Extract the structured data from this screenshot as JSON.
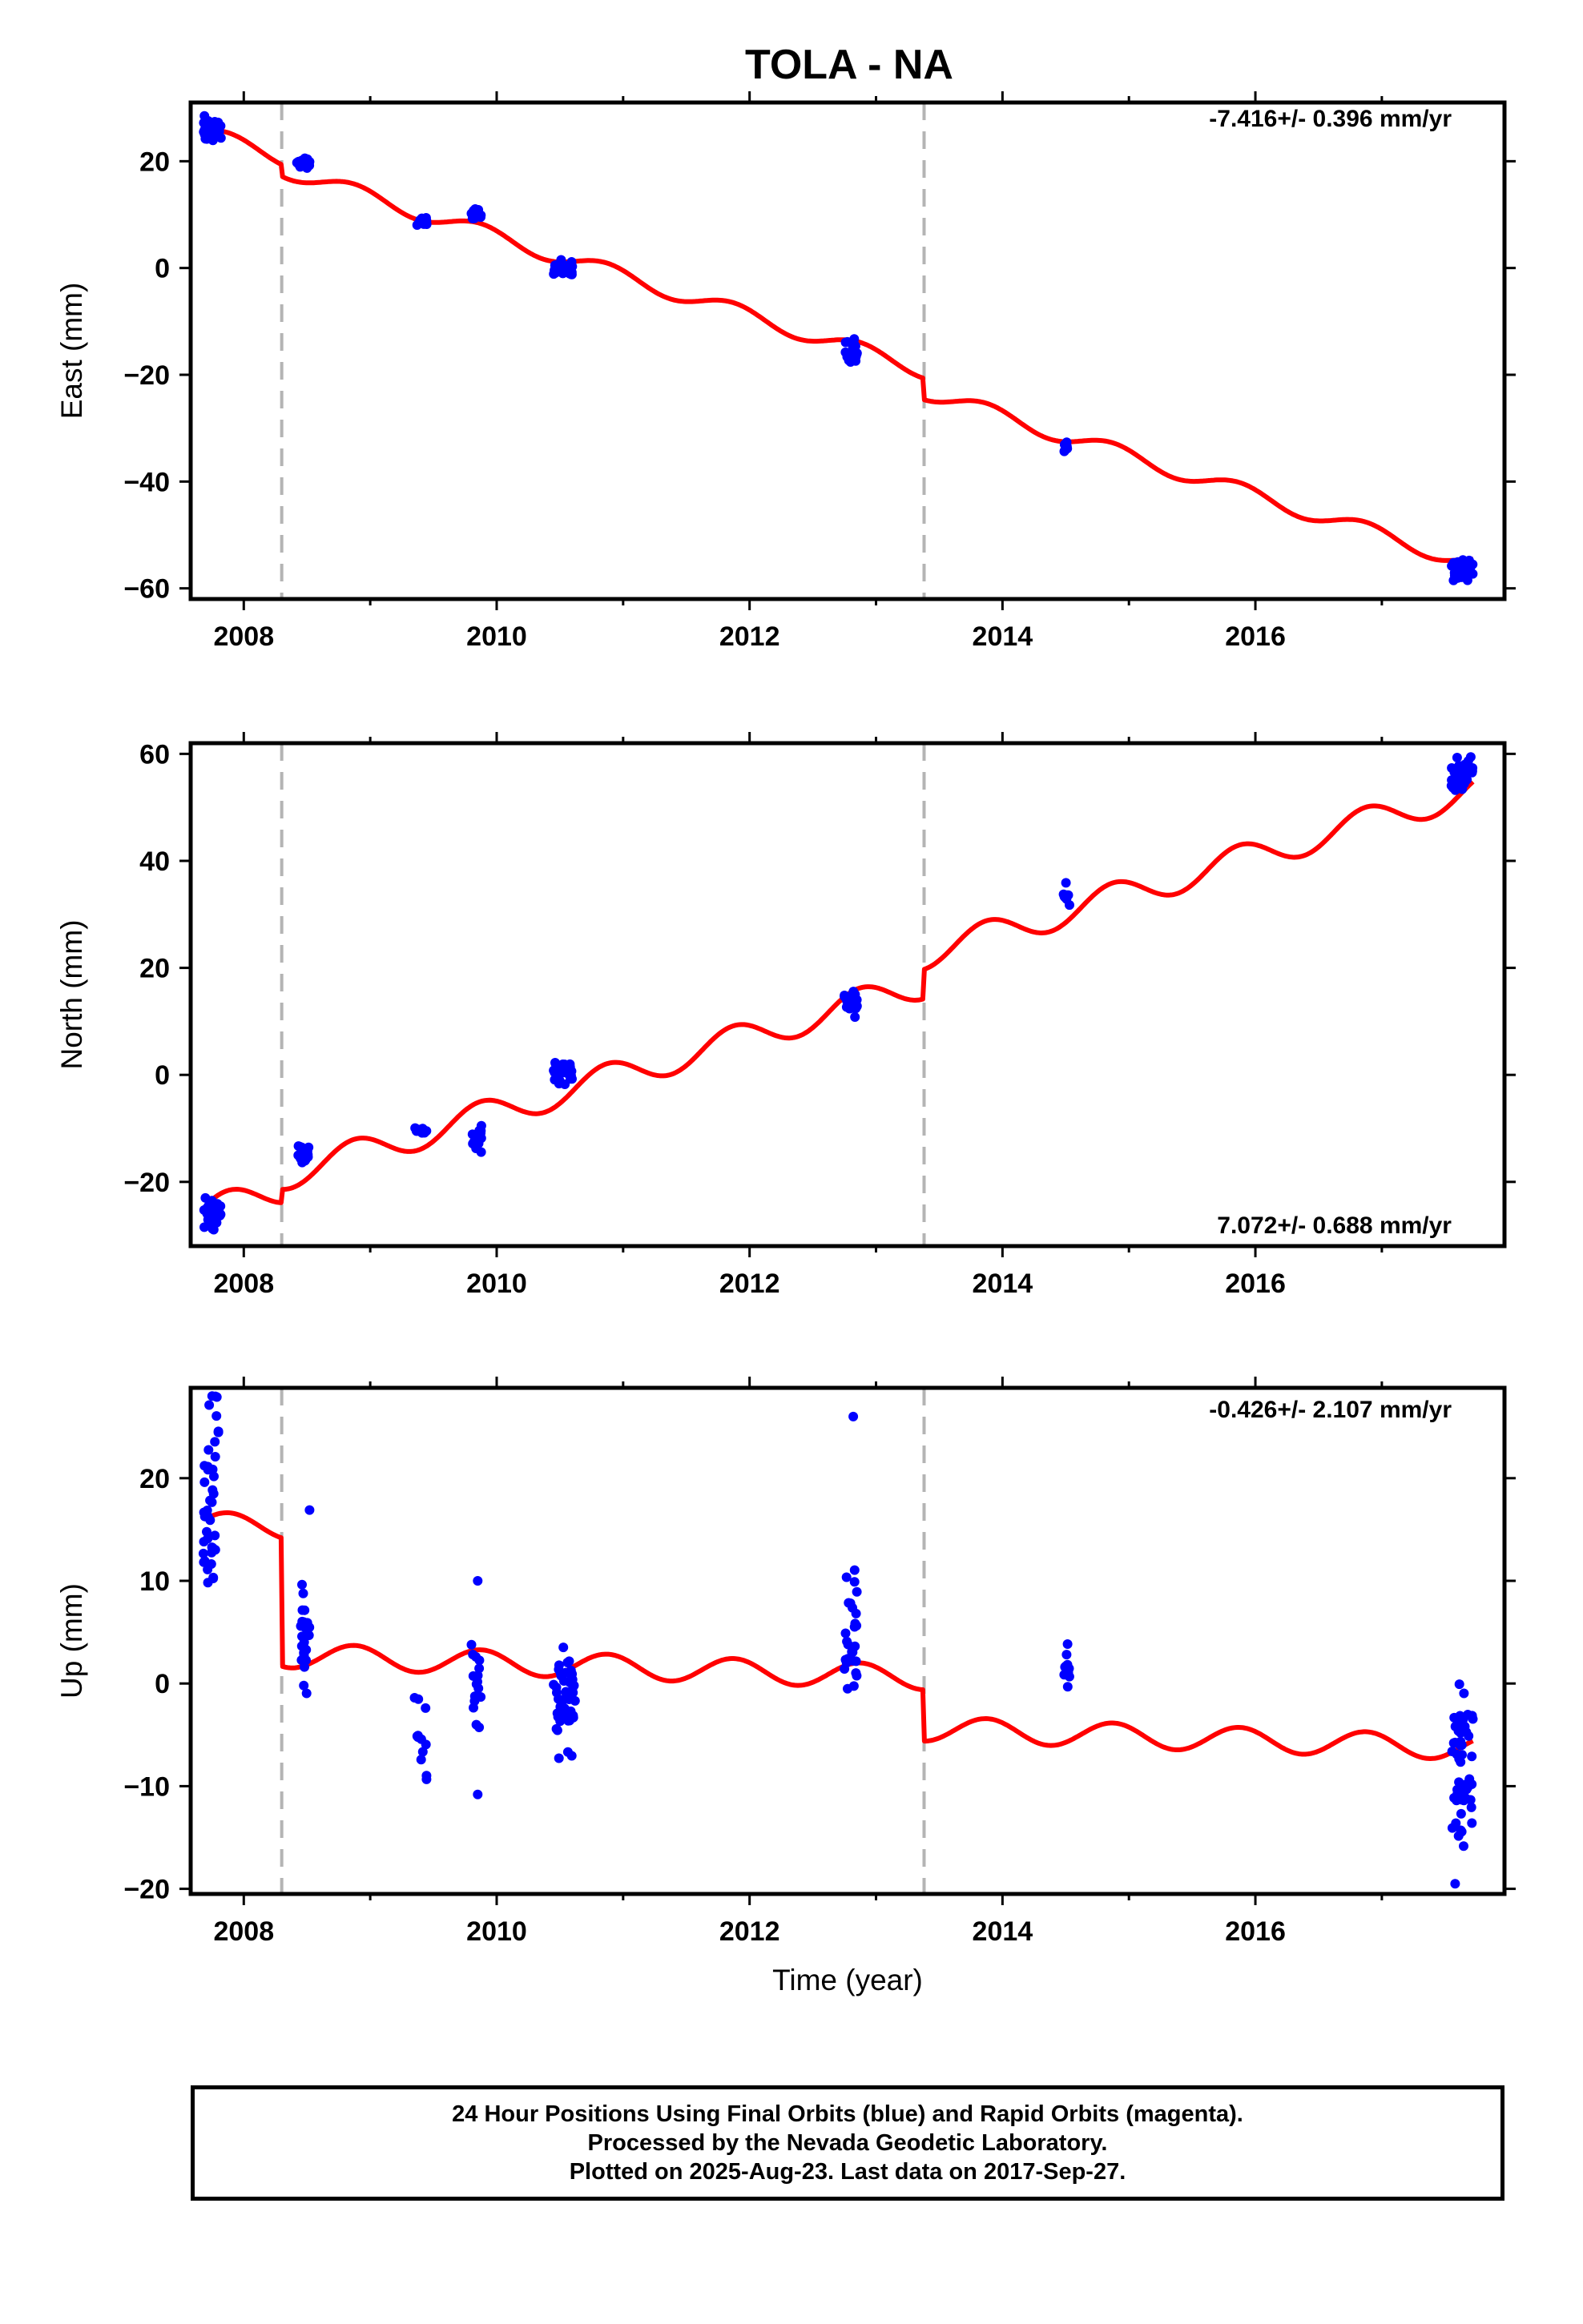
{
  "chart_data": {
    "type": "scatter",
    "title": "TOLA - NA",
    "xlabel": "Time (year)",
    "x_ticks": [
      "2008",
      "2010",
      "2012",
      "2014",
      "2016"
    ],
    "xlim": [
      2007.58,
      2017.97
    ],
    "offset_lines": [
      2008.3,
      2013.38
    ],
    "series_colors": {
      "points": "#0000ff",
      "model": "#ff0000",
      "offset_line": "#b4b4b4"
    },
    "panels": [
      {
        "name": "east",
        "ylabel": "East (mm)",
        "ylim": [
          -62,
          31
        ],
        "y_ticks": [
          20,
          0,
          -20,
          -40,
          -60
        ],
        "rate_text": "-7.416+/- 0.396 mm/yr",
        "rate_position": "top-right",
        "model": {
          "slope": -7.416,
          "anchor_year": 2007.72,
          "anchor_value": 25,
          "amplitude": 1.5,
          "steps": [
            [
              2008.3,
              -2.2
            ],
            [
              2013.38,
              -4.0
            ]
          ]
        },
        "clusters": [
          {
            "x": [
              2007.68,
              2007.82
            ],
            "center": 26.0,
            "spread": 2.6,
            "n": 34
          },
          {
            "x": [
              2008.42,
              2008.52
            ],
            "center": 19.5,
            "spread": 1.3,
            "n": 26
          },
          {
            "x": [
              2009.35,
              2009.45
            ],
            "center": 8.8,
            "spread": 1.0,
            "n": 16
          },
          {
            "x": [
              2009.8,
              2009.88
            ],
            "center": 10.3,
            "spread": 1.4,
            "n": 14
          },
          {
            "x": [
              2010.45,
              2010.6
            ],
            "center": 0.0,
            "spread": 1.6,
            "n": 30
          },
          {
            "x": [
              2012.75,
              2012.85
            ],
            "center": -15.5,
            "spread": 2.6,
            "n": 22
          },
          {
            "x": [
              2014.48,
              2014.53
            ],
            "center": -33.5,
            "spread": 2.0,
            "n": 6
          },
          {
            "x": [
              2017.55,
              2017.72
            ],
            "center": -56.5,
            "spread": 2.5,
            "n": 40
          }
        ]
      },
      {
        "name": "north",
        "ylabel": "North (mm)",
        "ylim": [
          -32,
          62
        ],
        "y_ticks": [
          60,
          40,
          20,
          0,
          -20
        ],
        "rate_text": "7.072+/- 0.688 mm/yr",
        "rate_position": "bottom-right",
        "model": {
          "slope": 7.072,
          "anchor_year": 2007.72,
          "anchor_value": -25.5,
          "amplitude": 2.8,
          "steps": [
            [
              2008.3,
              2.5
            ],
            [
              2013.38,
              5.5
            ]
          ]
        },
        "clusters": [
          {
            "x": [
              2007.68,
              2007.82
            ],
            "center": -26.0,
            "spread": 3.6,
            "n": 34
          },
          {
            "x": [
              2008.42,
              2008.52
            ],
            "center": -15.0,
            "spread": 2.0,
            "n": 24
          },
          {
            "x": [
              2009.35,
              2009.45
            ],
            "center": -10.5,
            "spread": 1.0,
            "n": 14
          },
          {
            "x": [
              2009.8,
              2009.88
            ],
            "center": -11.5,
            "spread": 3.6,
            "n": 16
          },
          {
            "x": [
              2010.45,
              2010.6
            ],
            "center": 0.5,
            "spread": 2.6,
            "n": 30
          },
          {
            "x": [
              2012.75,
              2012.85
            ],
            "center": 13.0,
            "spread": 3.2,
            "n": 22
          },
          {
            "x": [
              2014.48,
              2014.53
            ],
            "center": 33.5,
            "spread": 2.6,
            "n": 8
          },
          {
            "x": [
              2017.55,
              2017.72
            ],
            "center": 56.0,
            "spread": 3.6,
            "n": 40
          }
        ]
      },
      {
        "name": "up",
        "ylabel": "Up (mm)",
        "ylim": [
          -20.5,
          28.8
        ],
        "y_ticks": [
          20,
          10,
          0,
          -10,
          -20
        ],
        "rate_text": "-0.426+/- 2.107 mm/yr",
        "rate_position": "top-right",
        "model": {
          "slope": -0.426,
          "anchor_year": 2007.72,
          "anchor_value": 15.5,
          "amplitude": 1.2,
          "steps": [
            [
              2008.3,
              -12.5
            ],
            [
              2013.38,
              -5.0
            ]
          ]
        },
        "clusters": [
          {
            "x": [
              2007.68,
              2007.8
            ],
            "center": 17.0,
            "spread": 11.5,
            "n": 40
          },
          {
            "x": [
              2008.45,
              2008.52
            ],
            "center": 4.0,
            "spread": 6.0,
            "n": 24
          },
          {
            "x": [
              2009.35,
              2009.45
            ],
            "center": -5.5,
            "spread": 6.0,
            "n": 12
          },
          {
            "x": [
              2009.8,
              2009.88
            ],
            "center": 0.5,
            "spread": 5.5,
            "n": 16
          },
          {
            "x": [
              2010.45,
              2010.62
            ],
            "center": -1.5,
            "spread": 6.5,
            "n": 50
          },
          {
            "x": [
              2012.75,
              2012.85
            ],
            "center": 4.5,
            "spread": 7.5,
            "n": 28
          },
          {
            "x": [
              2014.48,
              2014.53
            ],
            "center": 1.5,
            "spread": 3.6,
            "n": 10
          },
          {
            "x": [
              2017.55,
              2017.72
            ],
            "center": -8.0,
            "spread": 10.5,
            "n": 56
          }
        ],
        "outliers": [
          [
            2012.82,
            26.0
          ],
          [
            2008.52,
            16.9
          ],
          [
            2009.85,
            10.0
          ],
          [
            2009.85,
            -10.8
          ],
          [
            2007.75,
            28.0
          ],
          [
            2017.58,
            -19.5
          ]
        ]
      }
    ]
  },
  "footer": {
    "line1": "24 Hour Positions Using Final Orbits (blue) and Rapid Orbits (magenta).",
    "line2": "Processed by the Nevada Geodetic Laboratory.",
    "line3": "Plotted on 2025-Aug-23. Last data on 2017-Sep-27."
  }
}
